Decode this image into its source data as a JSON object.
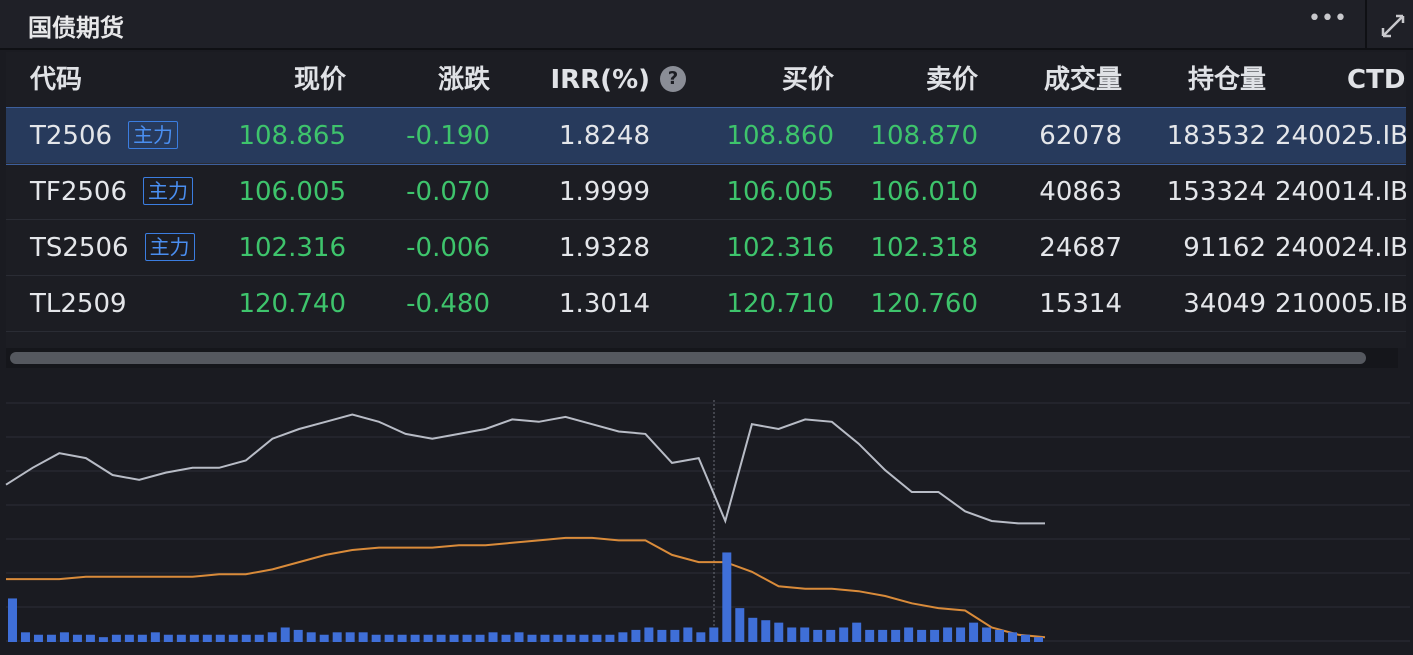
{
  "header": {
    "title": "国债期货",
    "menu": "•••"
  },
  "table": {
    "columns": [
      "代码",
      "现价",
      "涨跌",
      "IRR(%)",
      "买价",
      "卖价",
      "成交量",
      "持仓量",
      "CTD"
    ],
    "help_icon": "?",
    "rows": [
      {
        "code": "T2506",
        "tag": "主力",
        "cells": [
          "108.865",
          "-0.190",
          "1.8248",
          "108.860",
          "108.870",
          "62078",
          "183532",
          "240025.IB"
        ]
      },
      {
        "code": "TF2506",
        "tag": "主力",
        "cells": [
          "106.005",
          "-0.070",
          "1.9999",
          "106.005",
          "106.010",
          "40863",
          "153324",
          "240014.IB"
        ]
      },
      {
        "code": "TS2506",
        "tag": "主力",
        "cells": [
          "102.316",
          "-0.006",
          "1.9328",
          "102.316",
          "102.318",
          "24687",
          "91162",
          "240024.IB"
        ]
      },
      {
        "code": "TL2509",
        "cells": [
          "120.740",
          "-0.480",
          "1.3014",
          "120.710",
          "120.760",
          "15314",
          "34049",
          "210005.IB"
        ]
      }
    ]
  },
  "chart_data": {
    "type": "line",
    "ylim": [
      0,
      100
    ],
    "y2lim": [
      0,
      100
    ],
    "series": [
      {
        "color": "#b8bcc6",
        "values": [
          65,
          72,
          78,
          76,
          69,
          67,
          70,
          72,
          72,
          75,
          84,
          88,
          91,
          94,
          91,
          86,
          84,
          86,
          88,
          92,
          91,
          93,
          90,
          87,
          86,
          74,
          76,
          50,
          90,
          88,
          92,
          91,
          82,
          71,
          62,
          62,
          54,
          50,
          49,
          49
        ]
      },
      {
        "color": "#d98b3a",
        "values": [
          26,
          26,
          26,
          27,
          27,
          27,
          27,
          27,
          28,
          28,
          30,
          33,
          36,
          38,
          39,
          39,
          39,
          40,
          40,
          41,
          42,
          43,
          43,
          42,
          42,
          36,
          33,
          33,
          29,
          23,
          22,
          22,
          21,
          19,
          16,
          14,
          13,
          6,
          3,
          2
        ]
      },
      {
        "color": "#3f6fd8",
        "axis": "y2",
        "values": [
          18,
          4,
          3,
          3,
          4,
          3,
          3,
          2,
          3,
          3,
          3,
          4,
          3,
          3,
          3,
          3,
          3,
          3,
          3,
          3,
          4,
          6,
          5,
          4,
          3,
          4,
          4,
          4,
          3,
          3,
          3,
          3,
          3,
          3,
          3,
          3,
          3,
          4,
          3,
          4,
          3,
          3,
          3,
          3,
          3,
          3,
          3,
          4,
          5,
          6,
          5,
          5,
          6,
          4,
          6,
          37,
          14,
          10,
          9,
          8,
          6,
          6,
          5,
          5,
          6,
          8,
          5,
          5,
          5,
          6,
          5,
          5,
          6,
          6,
          8,
          6,
          5,
          4,
          3,
          2
        ]
      }
    ]
  }
}
